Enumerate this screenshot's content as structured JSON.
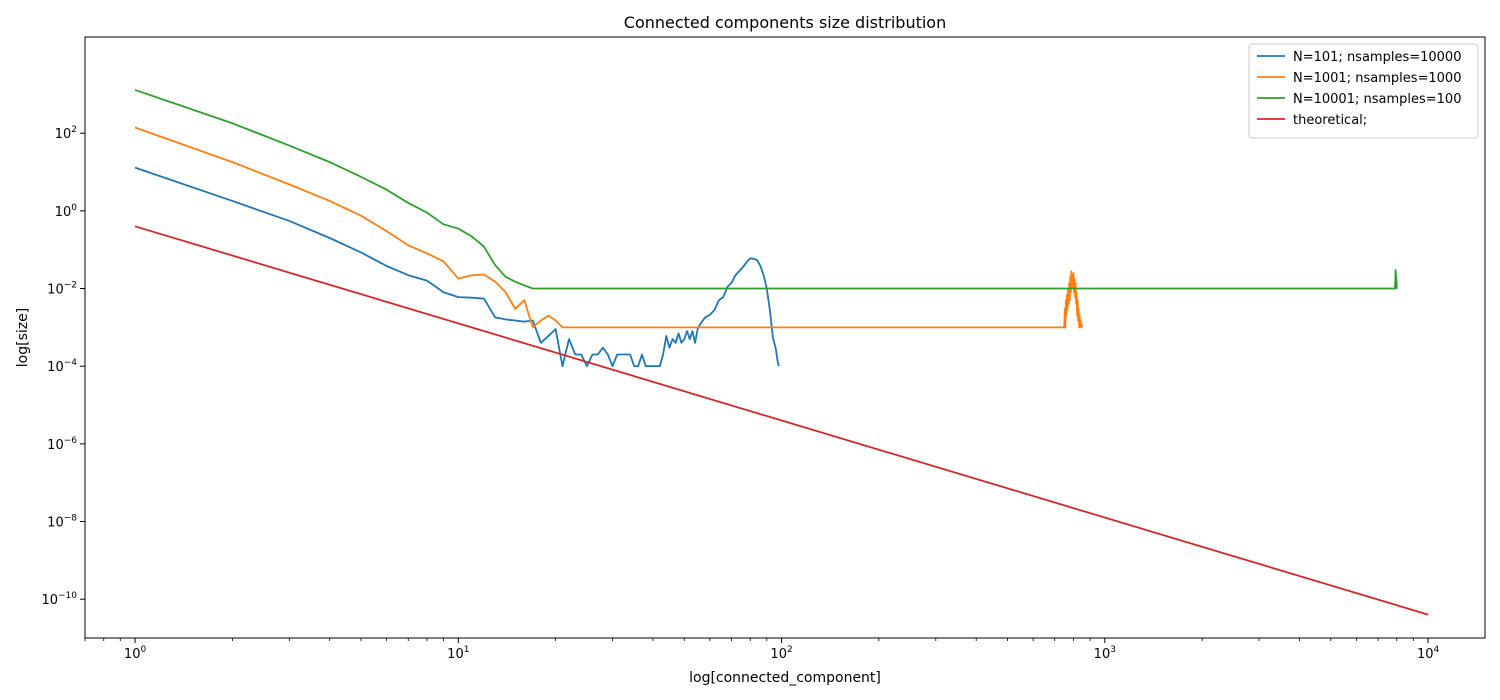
{
  "chart_data": {
    "type": "line",
    "title": "Connected components size distribution",
    "xlabel": "log[connected_component]",
    "ylabel": "log[size]",
    "xscale": "log",
    "yscale": "log",
    "xlim": [
      0.7,
      15000
    ],
    "ylim": [
      1e-11,
      30000
    ],
    "xticks": [
      {
        "value": 1,
        "base": "10",
        "exp": "0"
      },
      {
        "value": 10,
        "base": "10",
        "exp": "1"
      },
      {
        "value": 100,
        "base": "10",
        "exp": "2"
      },
      {
        "value": 1000,
        "base": "10",
        "exp": "3"
      },
      {
        "value": 10000,
        "base": "10",
        "exp": "4"
      }
    ],
    "yticks": [
      {
        "value": 1e-10,
        "base": "10",
        "exp": "−10"
      },
      {
        "value": 1e-08,
        "base": "10",
        "exp": "−8"
      },
      {
        "value": 1e-06,
        "base": "10",
        "exp": "−6"
      },
      {
        "value": 0.0001,
        "base": "10",
        "exp": "−4"
      },
      {
        "value": 0.01,
        "base": "10",
        "exp": "−2"
      },
      {
        "value": 1,
        "base": "10",
        "exp": "0"
      },
      {
        "value": 100,
        "base": "10",
        "exp": "2"
      }
    ],
    "grid": false,
    "legend_position": "top-right",
    "series": [
      {
        "name": "N=101; nsamples=10000",
        "color": "#1f77b4",
        "x": [
          1,
          2,
          3,
          4,
          5,
          6,
          7,
          8,
          9,
          10,
          11,
          12,
          13,
          14,
          15,
          16,
          17,
          18,
          19,
          20,
          21,
          22,
          23,
          24,
          25,
          26,
          27,
          28,
          29,
          30,
          31,
          32,
          33,
          34,
          35,
          36,
          37,
          38,
          39,
          40,
          41,
          42,
          43,
          44,
          45,
          46,
          47,
          48,
          49,
          50,
          51,
          52,
          53,
          54,
          55,
          56,
          58,
          60,
          62,
          64,
          66,
          68,
          70,
          72,
          74,
          76,
          78,
          80,
          82,
          84,
          86,
          88,
          90,
          92,
          94,
          96,
          97,
          98
        ],
        "y": [
          13,
          1.8,
          0.55,
          0.2,
          0.085,
          0.038,
          0.022,
          0.016,
          0.008,
          0.006,
          0.0058,
          0.0055,
          0.0018,
          0.0016,
          0.0015,
          0.0014,
          0.0015,
          0.0004,
          0.0006,
          0.0009,
          0.0001,
          0.0005,
          0.0002,
          0.0002,
          0.0001,
          0.0002,
          0.0002,
          0.0003,
          0.0002,
          0.0001,
          0.0002,
          0.0002,
          0.0002,
          0.0002,
          0.0001,
          0.0001,
          0.0002,
          0.0001,
          0.0001,
          0.0001,
          0.0001,
          0.0001,
          0.0002,
          0.0006,
          0.0003,
          0.0005,
          0.0004,
          0.0007,
          0.0004,
          0.0005,
          0.0008,
          0.0005,
          0.0008,
          0.0004,
          0.0009,
          0.0012,
          0.0018,
          0.0021,
          0.0028,
          0.005,
          0.006,
          0.011,
          0.014,
          0.022,
          0.028,
          0.036,
          0.048,
          0.06,
          0.058,
          0.054,
          0.038,
          0.022,
          0.01,
          0.0028,
          0.00055,
          0.00028,
          0.00015,
          0.0001
        ]
      },
      {
        "name": "N=1001; nsamples=1000",
        "color": "#ff7f0e",
        "x": [
          1,
          2,
          3,
          4,
          5,
          6,
          7,
          8,
          9,
          10,
          11,
          12,
          13,
          14,
          15,
          16,
          17,
          18,
          19,
          20,
          21,
          25,
          30,
          40,
          60,
          100,
          200,
          400,
          700,
          749,
          752,
          755,
          758,
          761,
          764,
          767,
          770,
          773,
          776,
          779,
          782,
          785,
          788,
          791,
          794,
          797,
          800,
          803,
          806,
          809,
          812,
          815,
          818,
          821,
          824,
          827,
          830,
          833,
          836,
          839,
          842,
          845,
          848,
          851
        ],
        "y": [
          140,
          18,
          4.8,
          1.8,
          0.75,
          0.3,
          0.13,
          0.08,
          0.05,
          0.018,
          0.022,
          0.023,
          0.015,
          0.008,
          0.003,
          0.005,
          0.001,
          0.0015,
          0.002,
          0.0015,
          0.001,
          0.001,
          0.001,
          0.001,
          0.001,
          0.001,
          0.001,
          0.001,
          0.001,
          0.001,
          0.003,
          0.001,
          0.005,
          0.002,
          0.007,
          0.003,
          0.01,
          0.004,
          0.014,
          0.005,
          0.02,
          0.008,
          0.028,
          0.01,
          0.022,
          0.012,
          0.025,
          0.008,
          0.018,
          0.006,
          0.014,
          0.004,
          0.008,
          0.002,
          0.005,
          0.0015,
          0.003,
          0.001,
          0.002,
          0.001,
          0.0015,
          0.001,
          0.0012,
          0.001
        ]
      },
      {
        "name": "N=10001; nsamples=100",
        "color": "#2ca02c",
        "x": [
          1,
          2,
          3,
          4,
          5,
          6,
          7,
          8,
          9,
          10,
          11,
          12,
          13,
          14,
          15,
          16,
          17,
          20,
          50,
          100,
          500,
          1000,
          5000,
          7900,
          7910,
          7920,
          7930,
          7940,
          7950,
          7960,
          7970,
          7980,
          7990,
          8000
        ],
        "y": [
          1300,
          180,
          48,
          18,
          7.5,
          3.5,
          1.6,
          0.9,
          0.45,
          0.35,
          0.22,
          0.12,
          0.04,
          0.02,
          0.015,
          0.012,
          0.01,
          0.01,
          0.01,
          0.01,
          0.01,
          0.01,
          0.01,
          0.01,
          0.015,
          0.01,
          0.03,
          0.01,
          0.025,
          0.012,
          0.02,
          0.01,
          0.015,
          0.01
        ]
      },
      {
        "name": "theoretical;",
        "color": "#d62728",
        "x": [
          1,
          10000
        ],
        "y": [
          0.4,
          4e-11
        ]
      }
    ]
  }
}
